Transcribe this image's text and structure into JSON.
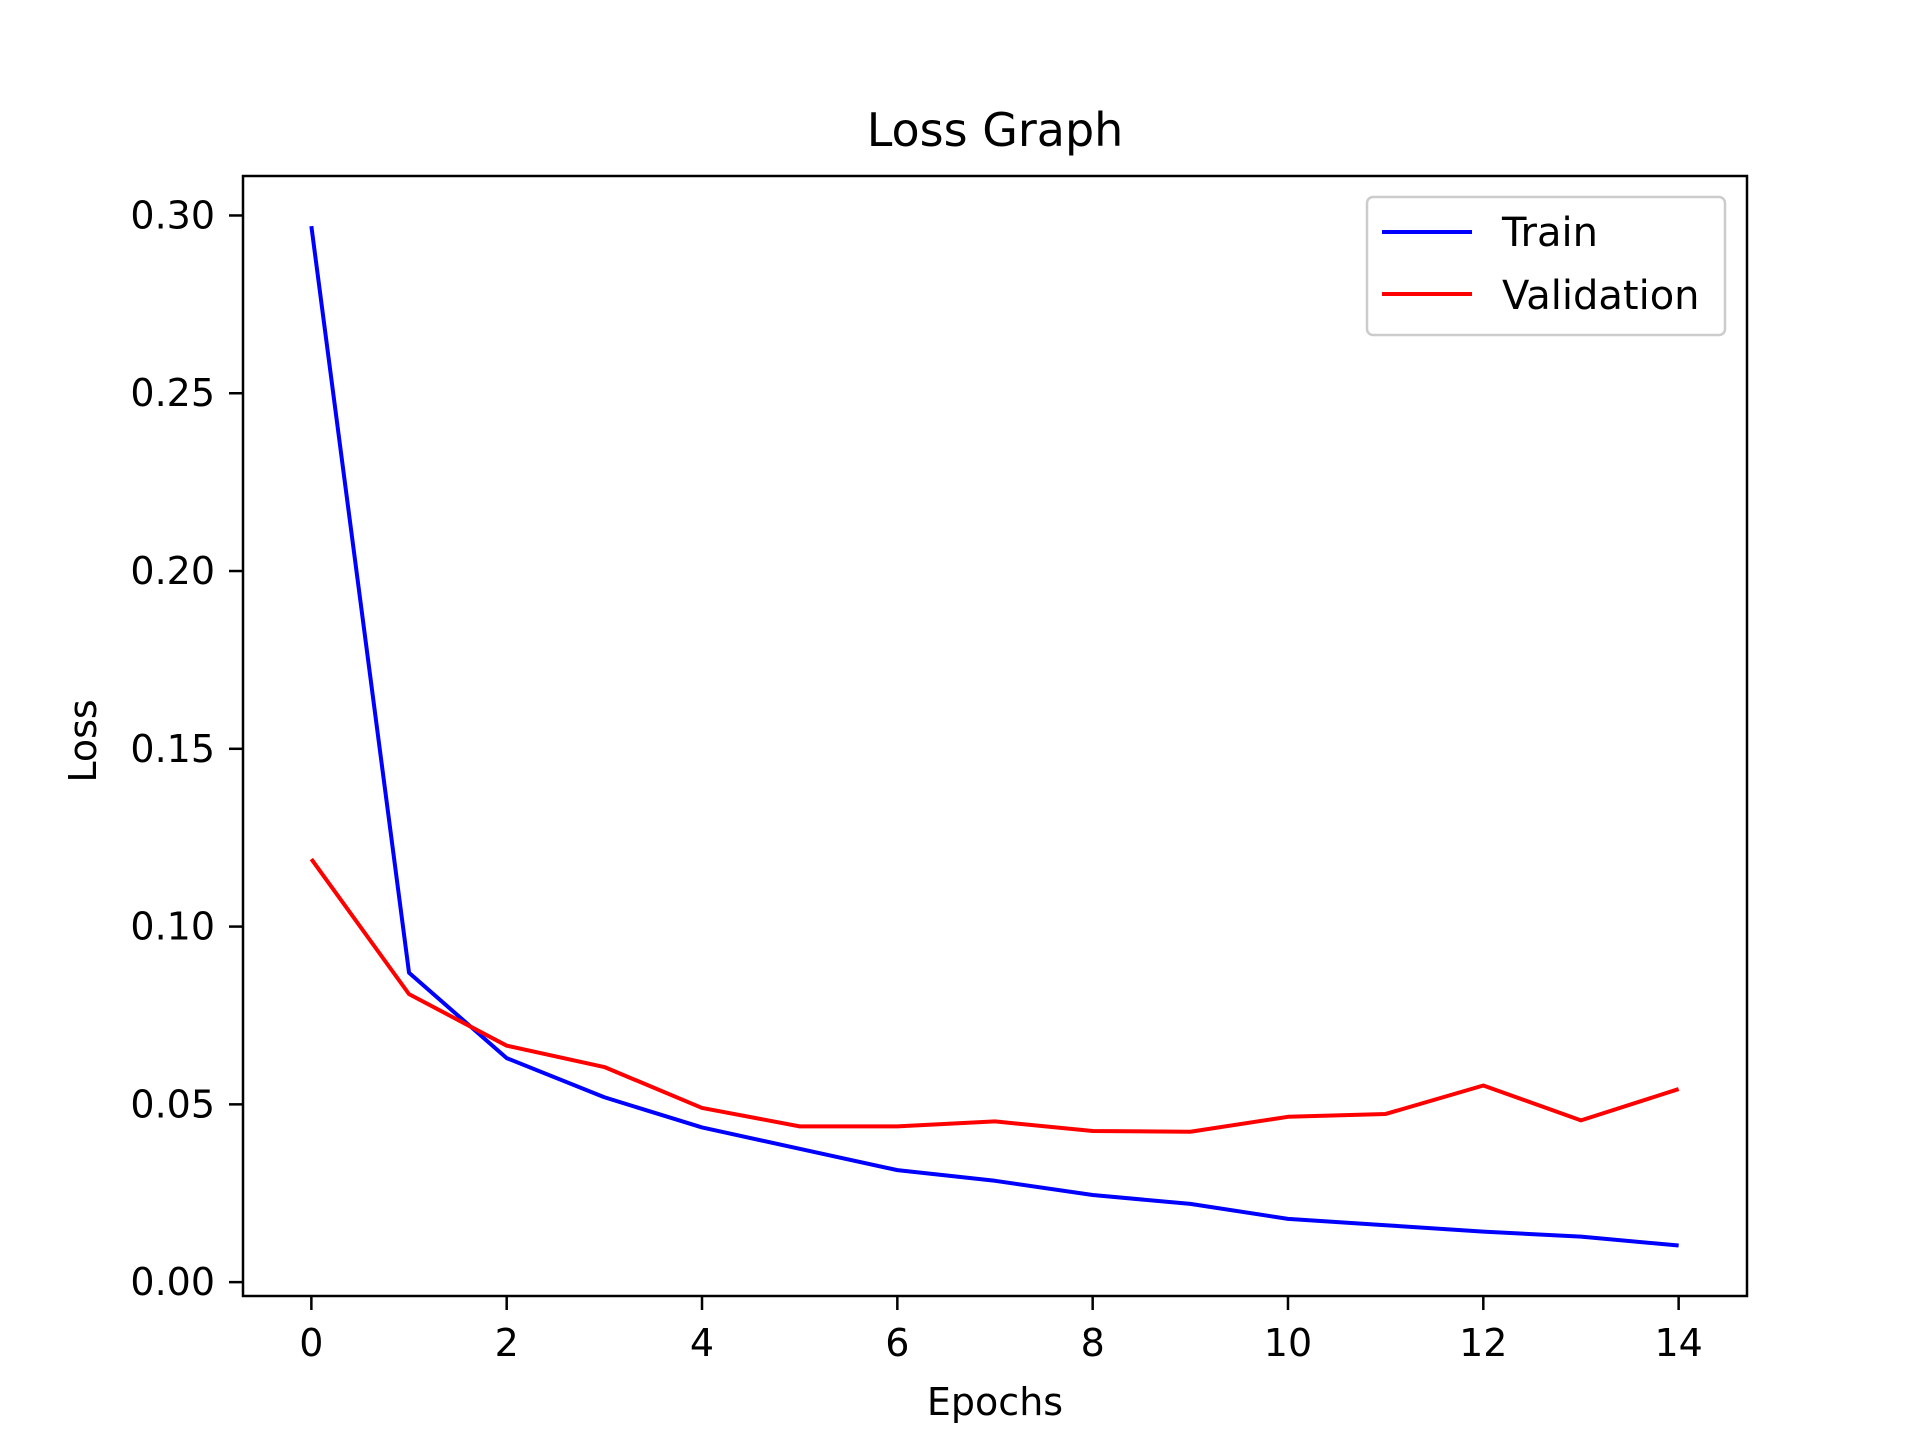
{
  "chart_data": {
    "type": "line",
    "title": "Loss Graph",
    "xlabel": "Epochs",
    "ylabel": "Loss",
    "x": [
      0,
      1,
      2,
      3,
      4,
      5,
      6,
      7,
      8,
      9,
      10,
      11,
      12,
      13,
      14
    ],
    "series": [
      {
        "name": "Train",
        "color": "#0000ff",
        "values": [
          0.297,
          0.087,
          0.063,
          0.052,
          0.0435,
          0.0375,
          0.0315,
          0.0285,
          0.0245,
          0.022,
          0.0178,
          0.016,
          0.0142,
          0.0128,
          0.0103
        ]
      },
      {
        "name": "Validation",
        "color": "#ff0000",
        "values": [
          0.119,
          0.081,
          0.0665,
          0.0605,
          0.049,
          0.0438,
          0.0438,
          0.0452,
          0.0425,
          0.0423,
          0.0465,
          0.0473,
          0.0553,
          0.0455,
          0.0543
        ]
      }
    ],
    "xlim": [
      -0.7,
      14.7
    ],
    "ylim": [
      -0.0039,
      0.3111
    ],
    "xticks": [
      "0",
      "2",
      "4",
      "6",
      "8",
      "10",
      "12",
      "14"
    ],
    "xtick_values": [
      0,
      2,
      4,
      6,
      8,
      10,
      12,
      14
    ],
    "yticks": [
      "0.00",
      "0.05",
      "0.10",
      "0.15",
      "0.20",
      "0.25",
      "0.30"
    ],
    "ytick_values": [
      0,
      0.05,
      0.1,
      0.15,
      0.2,
      0.25,
      0.3
    ],
    "grid": false,
    "legend_position": "top-right"
  }
}
